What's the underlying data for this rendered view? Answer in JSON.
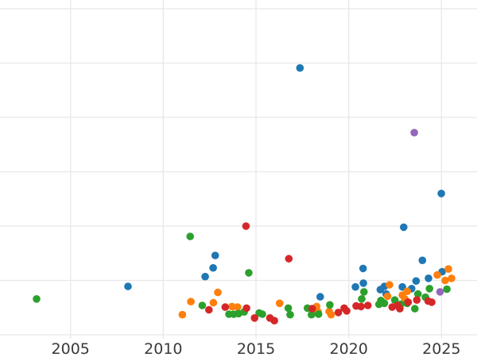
{
  "chart_data": {
    "type": "scatter",
    "title": "",
    "xlabel": "",
    "ylabel": "",
    "grid": true,
    "legend_position": "none",
    "x_axis": {
      "tick_labels": [
        "2005",
        "2010",
        "2015",
        "2020",
        "2025"
      ],
      "tick_values": [
        2005,
        2010,
        2015,
        2020,
        2025
      ],
      "range": [
        2001.2,
        2026.9
      ]
    },
    "y_axis": {
      "tick_labels": [],
      "gridline_values": [
        0,
        1,
        2,
        3,
        4,
        5,
        6
      ],
      "range": [
        -0.07,
        6.16
      ]
    },
    "series": [
      {
        "name": "blue",
        "color": "#1f77b4",
        "points": [
          [
            2008.1,
            0.89
          ],
          [
            2012.26,
            1.07
          ],
          [
            2012.69,
            1.23
          ],
          [
            2012.8,
            1.46
          ],
          [
            2017.37,
            4.91
          ],
          [
            2018.46,
            0.7
          ],
          [
            2020.36,
            0.88
          ],
          [
            2020.77,
            1.22
          ],
          [
            2020.79,
            0.95
          ],
          [
            2021.7,
            0.83
          ],
          [
            2021.92,
            0.89
          ],
          [
            2022.02,
            0.75
          ],
          [
            2022.89,
            0.88
          ],
          [
            2022.96,
            1.98
          ],
          [
            2023.39,
            0.85
          ],
          [
            2023.63,
            0.99
          ],
          [
            2023.97,
            1.37
          ],
          [
            2024.3,
            1.04
          ],
          [
            2024.99,
            2.6
          ],
          [
            2025.03,
            1.16
          ]
        ]
      },
      {
        "name": "orange",
        "color": "#ff7f0e",
        "points": [
          [
            2011.03,
            0.37
          ],
          [
            2011.49,
            0.61
          ],
          [
            2012.7,
            0.59
          ],
          [
            2012.94,
            0.78
          ],
          [
            2013.71,
            0.52
          ],
          [
            2014.01,
            0.51
          ],
          [
            2016.27,
            0.58
          ],
          [
            2018.27,
            0.52
          ],
          [
            2018.34,
            0.42
          ],
          [
            2018.94,
            0.43
          ],
          [
            2019.05,
            0.37
          ],
          [
            2022.09,
            0.71
          ],
          [
            2022.2,
            0.92
          ],
          [
            2022.89,
            0.73
          ],
          [
            2023.02,
            0.66
          ],
          [
            2023.15,
            0.8
          ],
          [
            2024.77,
            1.1
          ],
          [
            2025.2,
            1.0
          ],
          [
            2025.37,
            1.21
          ],
          [
            2025.54,
            1.04
          ]
        ]
      },
      {
        "name": "green",
        "color": "#2ca02c",
        "points": [
          [
            2003.17,
            0.66
          ],
          [
            2011.45,
            1.81
          ],
          [
            2012.1,
            0.54
          ],
          [
            2013.54,
            0.38
          ],
          [
            2013.8,
            0.38
          ],
          [
            2014.06,
            0.39
          ],
          [
            2014.36,
            0.42
          ],
          [
            2014.61,
            1.14
          ],
          [
            2015.17,
            0.4
          ],
          [
            2015.34,
            0.38
          ],
          [
            2016.74,
            0.49
          ],
          [
            2016.84,
            0.37
          ],
          [
            2017.77,
            0.49
          ],
          [
            2017.99,
            0.37
          ],
          [
            2018.37,
            0.38
          ],
          [
            2018.98,
            0.55
          ],
          [
            2020.7,
            0.66
          ],
          [
            2020.82,
            0.79
          ],
          [
            2021.63,
            0.56
          ],
          [
            2021.73,
            0.63
          ],
          [
            2021.92,
            0.58
          ],
          [
            2022.48,
            0.64
          ],
          [
            2022.8,
            0.56
          ],
          [
            2023.15,
            0.58
          ],
          [
            2023.56,
            0.48
          ],
          [
            2023.73,
            0.75
          ],
          [
            2024.13,
            0.69
          ],
          [
            2024.35,
            0.85
          ],
          [
            2025.29,
            0.84
          ]
        ]
      },
      {
        "name": "red",
        "color": "#d62728",
        "points": [
          [
            2012.46,
            0.46
          ],
          [
            2013.34,
            0.51
          ],
          [
            2014.46,
            2.0
          ],
          [
            2014.49,
            0.49
          ],
          [
            2014.92,
            0.31
          ],
          [
            2015.75,
            0.31
          ],
          [
            2015.99,
            0.26
          ],
          [
            2016.77,
            1.4
          ],
          [
            2018.03,
            0.48
          ],
          [
            2019.44,
            0.41
          ],
          [
            2019.75,
            0.49
          ],
          [
            2019.89,
            0.44
          ],
          [
            2020.4,
            0.53
          ],
          [
            2020.66,
            0.52
          ],
          [
            2021.03,
            0.54
          ],
          [
            2022.34,
            0.51
          ],
          [
            2022.63,
            0.54
          ],
          [
            2022.75,
            0.48
          ],
          [
            2023.2,
            0.6
          ],
          [
            2023.67,
            0.64
          ],
          [
            2024.28,
            0.62
          ],
          [
            2024.47,
            0.6
          ]
        ]
      },
      {
        "name": "purple",
        "color": "#9467bd",
        "points": [
          [
            2023.53,
            3.72
          ],
          [
            2024.92,
            0.79
          ]
        ]
      }
    ]
  },
  "style": {
    "background": "#ffffff",
    "grid_color": "#e8e8e8",
    "tick_label_color": "#3a3a3a"
  }
}
